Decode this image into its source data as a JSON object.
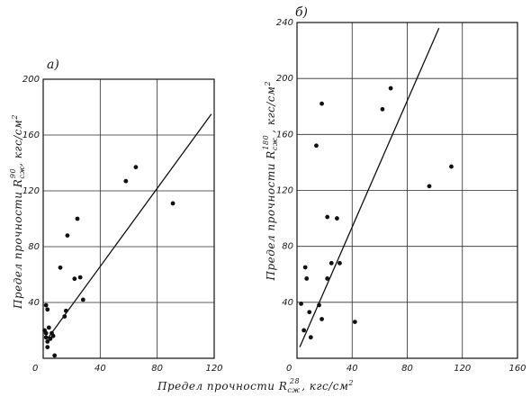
{
  "chart_data": [
    {
      "type": "scatter",
      "panel_label": "а)",
      "ylabel": "Предел прочности R",
      "ylabel_sub": "сж",
      "ylabel_sup": "90",
      "ylabel_unit": ", кгс/см",
      "ylabel_unit_sup": "2",
      "xlim": [
        0,
        120
      ],
      "ylim": [
        0,
        200
      ],
      "x_ticks": [
        {
          "value": 0,
          "label": "0"
        },
        {
          "value": 40,
          "label": "40"
        },
        {
          "value": 80,
          "label": "80"
        },
        {
          "value": 120,
          "label": "120"
        }
      ],
      "y_ticks": [
        {
          "value": 40,
          "label": "40"
        },
        {
          "value": 80,
          "label": "80"
        },
        {
          "value": 120,
          "label": "120"
        },
        {
          "value": 160,
          "label": "160"
        },
        {
          "value": 200,
          "label": "200"
        }
      ],
      "grid": true,
      "points": [
        [
          1,
          20
        ],
        [
          2,
          15
        ],
        [
          3,
          12
        ],
        [
          2,
          18
        ],
        [
          4,
          22
        ],
        [
          3,
          8
        ],
        [
          5,
          14
        ],
        [
          6,
          18
        ],
        [
          7,
          16
        ],
        [
          2,
          38
        ],
        [
          3,
          35
        ],
        [
          12,
          65
        ],
        [
          15,
          30
        ],
        [
          16,
          34
        ],
        [
          17,
          88
        ],
        [
          22,
          57
        ],
        [
          24,
          100
        ],
        [
          26,
          58
        ],
        [
          28,
          42
        ],
        [
          58,
          127
        ],
        [
          65,
          137
        ],
        [
          91,
          111
        ],
        [
          8,
          2
        ]
      ],
      "regression": [
        [
          3,
          14
        ],
        [
          118,
          175
        ]
      ]
    },
    {
      "type": "scatter",
      "panel_label": "б)",
      "ylabel": "Предел прочности R",
      "ylabel_sub": "сж",
      "ylabel_sup": "180",
      "ylabel_unit": ", кгс/см",
      "ylabel_unit_sup": "2",
      "xlim": [
        0,
        160
      ],
      "ylim": [
        0,
        240
      ],
      "x_ticks": [
        {
          "value": 0,
          "label": "0"
        },
        {
          "value": 40,
          "label": "40"
        },
        {
          "value": 80,
          "label": "80"
        },
        {
          "value": 120,
          "label": "120"
        },
        {
          "value": 160,
          "label": "160"
        }
      ],
      "y_ticks": [
        {
          "value": 40,
          "label": "40"
        },
        {
          "value": 80,
          "label": "80"
        },
        {
          "value": 120,
          "label": "120"
        },
        {
          "value": 160,
          "label": "160"
        },
        {
          "value": 200,
          "label": "200"
        },
        {
          "value": 240,
          "label": "240"
        }
      ],
      "grid": true,
      "points": [
        [
          3,
          39
        ],
        [
          5,
          20
        ],
        [
          6,
          65
        ],
        [
          7,
          57
        ],
        [
          9,
          33
        ],
        [
          10,
          15
        ],
        [
          14,
          152
        ],
        [
          16,
          38
        ],
        [
          18,
          182
        ],
        [
          18,
          28
        ],
        [
          22,
          101
        ],
        [
          22,
          57
        ],
        [
          25,
          68
        ],
        [
          29,
          100
        ],
        [
          31,
          68
        ],
        [
          42,
          26
        ],
        [
          62,
          178
        ],
        [
          68,
          193
        ],
        [
          96,
          123
        ],
        [
          112,
          137
        ]
      ],
      "regression": [
        [
          2,
          8
        ],
        [
          103,
          236
        ]
      ]
    }
  ],
  "xlabel": "Предел прочности R",
  "xlabel_sub": "сж",
  "xlabel_sup": "28",
  "xlabel_unit": ", кгс/см",
  "xlabel_unit_sup": "2"
}
